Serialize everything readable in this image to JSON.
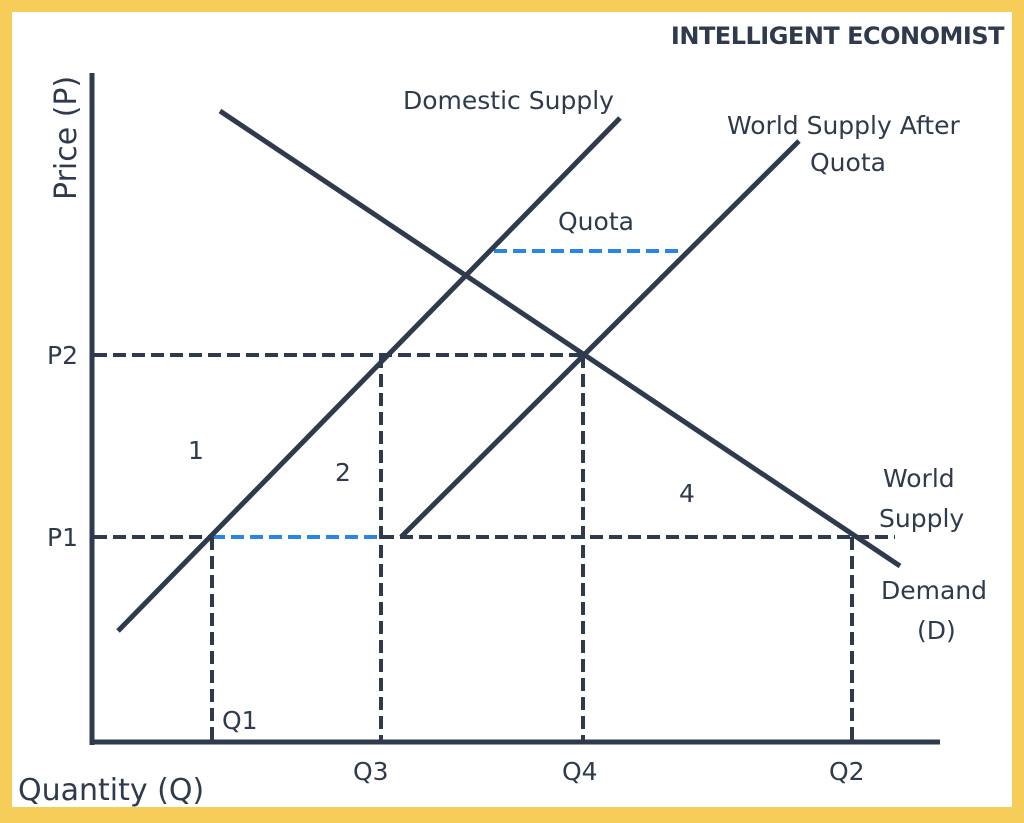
{
  "brand": "INTELLIGENT ECONOMIST",
  "axes": {
    "y_label": "Price (P)",
    "x_label": "Quantity (Q)"
  },
  "price_levels": [
    "P2",
    "P1"
  ],
  "quantity_levels": [
    "Q1",
    "Q3",
    "Q4",
    "Q2"
  ],
  "curves": {
    "domestic_supply": "Domestic Supply",
    "world_supply_after_quota": [
      "World Supply After",
      "Quota"
    ],
    "world_supply": [
      "World",
      "Supply"
    ],
    "demand": [
      "Demand",
      "(D)"
    ],
    "quota": "Quota"
  },
  "regions": [
    "1",
    "2",
    "4"
  ],
  "colors": {
    "background": "#f7cd5a",
    "panel": "#ffffff",
    "ink": "#2f3b4c",
    "quota_highlight": "#2a86e6"
  }
}
